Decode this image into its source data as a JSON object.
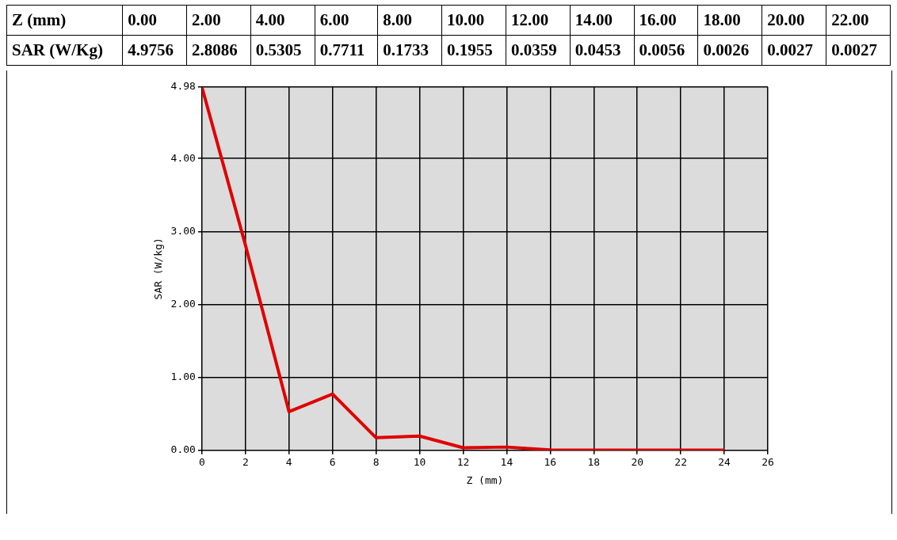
{
  "chart_data": {
    "type": "line",
    "x": [
      0,
      2,
      4,
      6,
      8,
      10,
      12,
      14,
      16,
      18,
      20,
      22,
      24
    ],
    "series": [
      {
        "color": "#e00000",
        "values": [
          4.9756,
          2.8086,
          0.5305,
          0.7711,
          0.1733,
          0.1955,
          0.0359,
          0.0453,
          0.0056,
          0.0026,
          0.0027,
          0.0027,
          0.0027
        ]
      }
    ],
    "annotations": [
      "Z (mm)",
      "0.00",
      "2.00",
      "4.00",
      "6.00",
      "8.00",
      "10.00",
      "12.00",
      "14.00",
      "16.00",
      "18.00",
      "20.00",
      "22.00",
      "SAR (W/Kg)",
      "4.9756",
      "2.8086",
      "0.5305",
      "0.7711",
      "0.1733",
      "0.1955",
      "0.0359",
      "0.0453",
      "0.0056",
      "0.0026",
      "0.0027",
      "0.0027"
    ],
    "xlabel": "Z (mm)",
    "ylabel": "SAR (W/kg)",
    "xlim": [
      0,
      26
    ],
    "xticks": [
      0,
      2,
      4,
      6,
      8,
      10,
      12,
      14,
      16,
      18,
      20,
      22,
      24,
      26
    ],
    "ylim": [
      0,
      4.98
    ],
    "yticks": [
      {
        "value": 0,
        "label": "0.00"
      },
      {
        "value": 1,
        "label": "1.00"
      },
      {
        "value": 2,
        "label": "2.00"
      },
      {
        "value": 3,
        "label": "3.00"
      },
      {
        "value": 4,
        "label": "4.00"
      },
      {
        "value": 4.98,
        "label": "4.98"
      }
    ],
    "grid": true,
    "marker": "none",
    "line_style": "solid",
    "legend": false
  }
}
